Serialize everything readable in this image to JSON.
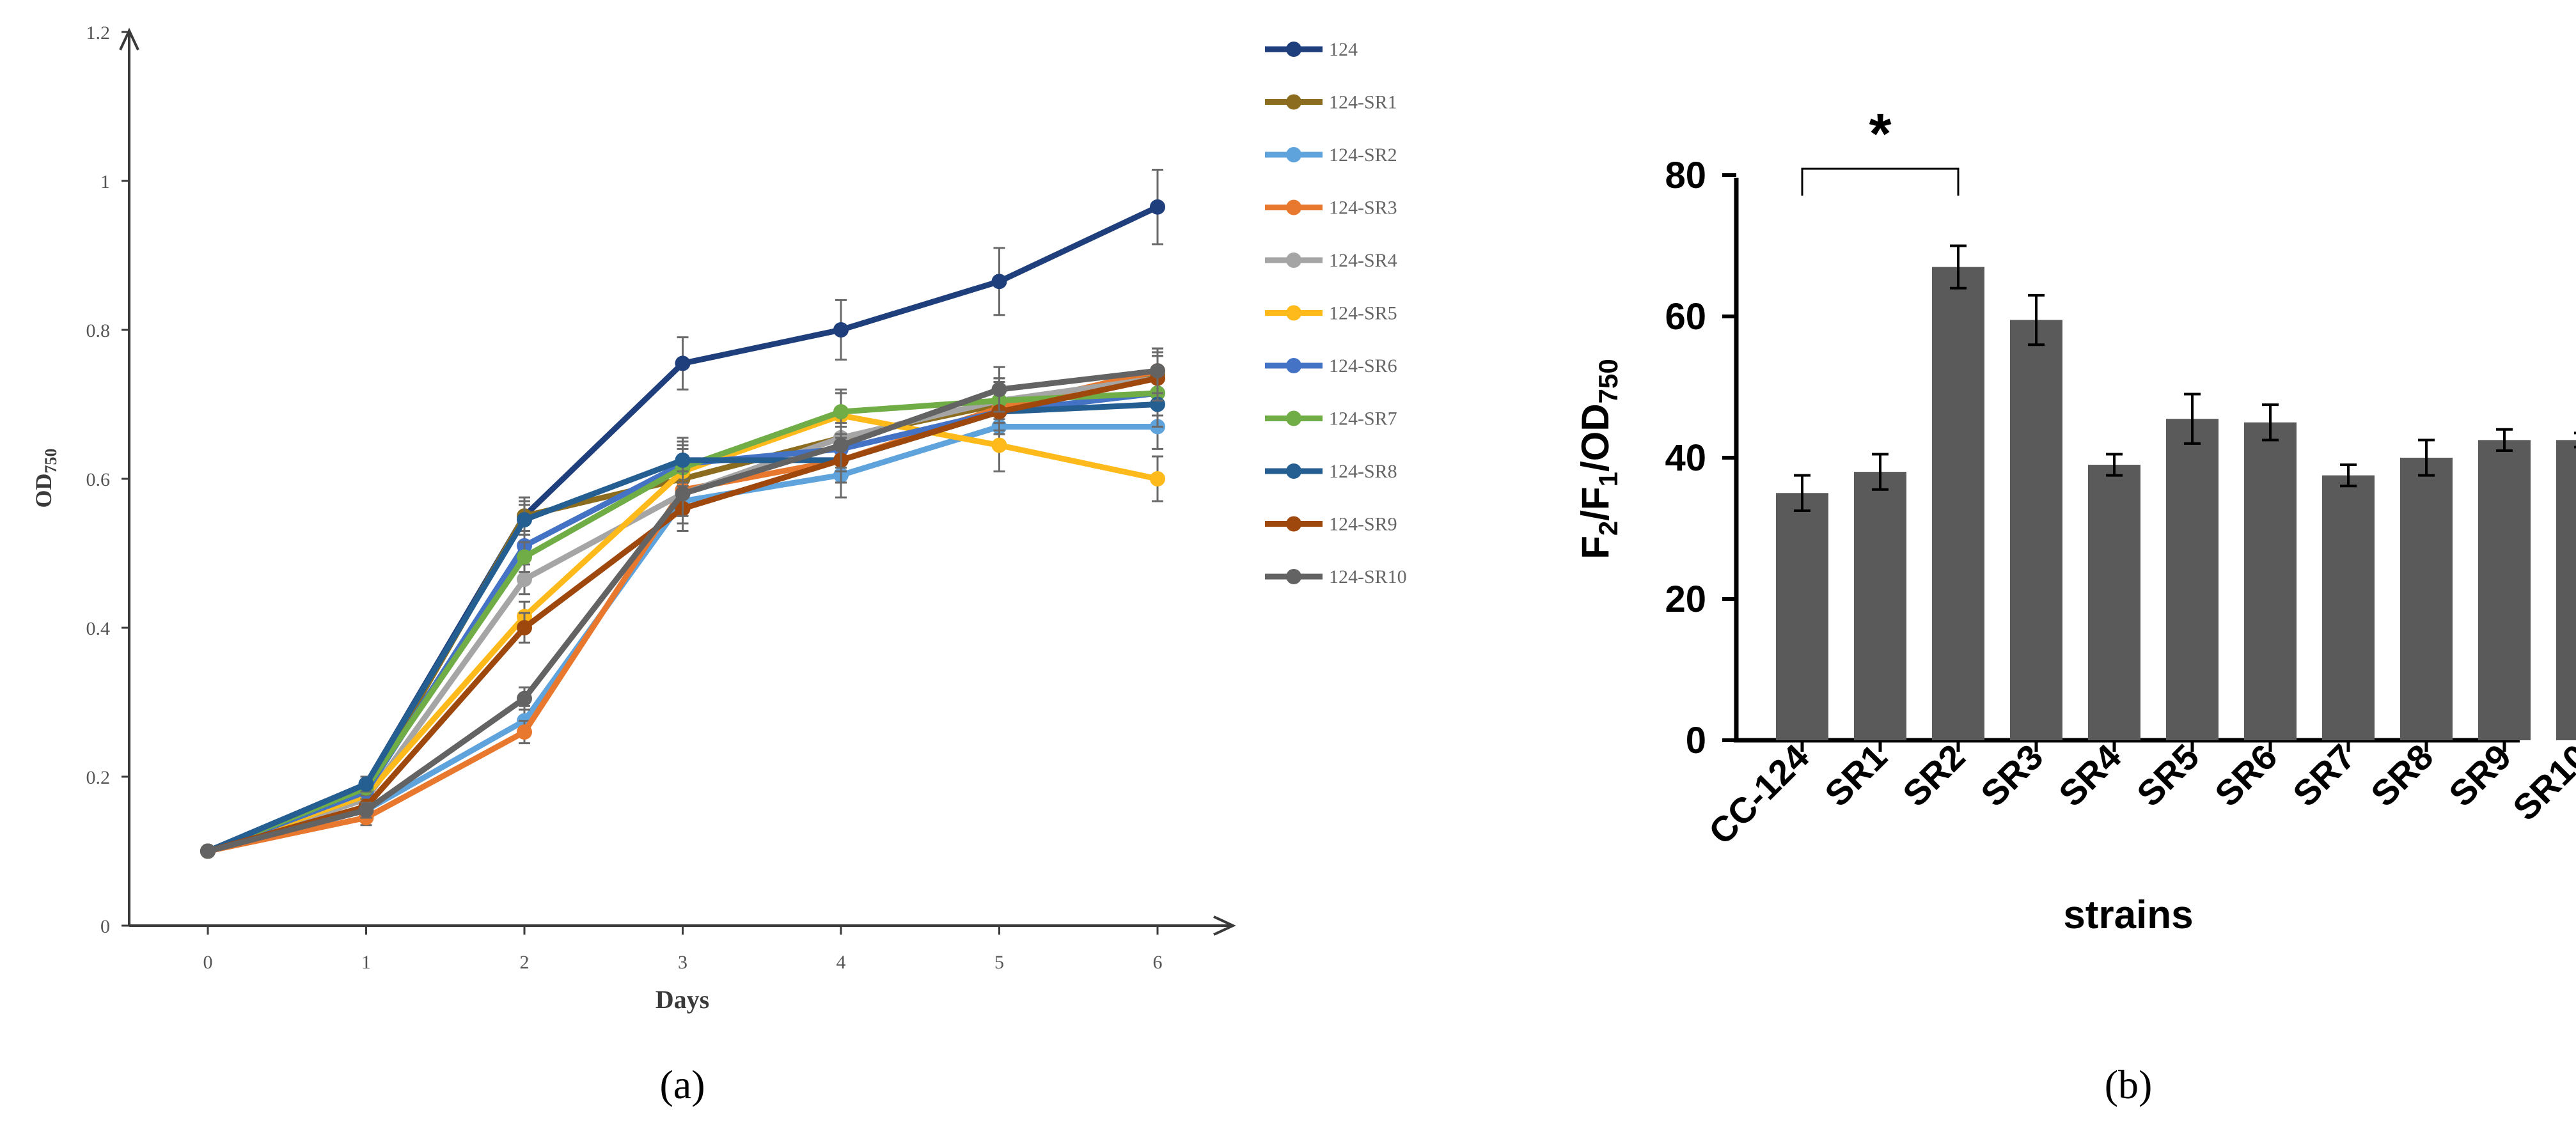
{
  "chart_data": [
    {
      "type": "line",
      "panel_label": "(a)",
      "title": "",
      "xlabel": "Days",
      "ylabel": "OD",
      "ylabel_sub": "750",
      "x": [
        0,
        1,
        2,
        3,
        4,
        5,
        6
      ],
      "xticks": [
        "0",
        "1",
        "2",
        "3",
        "4",
        "5",
        "6"
      ],
      "yticks": [
        "0",
        "0.2",
        "0.4",
        "0.6",
        "0.8",
        "1",
        "1.2"
      ],
      "ylim": [
        0,
        1.2
      ],
      "legend_position": "right",
      "series": [
        {
          "name": "124",
          "color": "#1F3E7C",
          "values": [
            0.1,
            0.19,
            0.55,
            0.755,
            0.8,
            0.865,
            0.965
          ],
          "errors": [
            0,
            0.01,
            0.025,
            0.035,
            0.04,
            0.045,
            0.05
          ]
        },
        {
          "name": "124-SR1",
          "color": "#8C6D1F",
          "values": [
            0.1,
            0.18,
            0.55,
            0.6,
            0.655,
            0.7,
            0.74
          ],
          "errors": [
            0,
            0.01,
            0.02,
            0.03,
            0.03,
            0.03,
            0.03
          ]
        },
        {
          "name": "124-SR2",
          "color": "#5FA3DD",
          "values": [
            0.1,
            0.155,
            0.275,
            0.57,
            0.605,
            0.67,
            0.67
          ],
          "errors": [
            0,
            0.01,
            0.02,
            0.03,
            0.03,
            0.03,
            0.03
          ]
        },
        {
          "name": "124-SR3",
          "color": "#E8782E",
          "values": [
            0.1,
            0.145,
            0.26,
            0.585,
            0.625,
            0.695,
            0.745
          ],
          "errors": [
            0,
            0.01,
            0.015,
            0.03,
            0.03,
            0.03,
            0.03
          ]
        },
        {
          "name": "124-SR4",
          "color": "#A5A5A5",
          "values": [
            0.1,
            0.17,
            0.465,
            0.58,
            0.655,
            0.705,
            0.735
          ],
          "errors": [
            0,
            0.01,
            0.02,
            0.03,
            0.03,
            0.03,
            0.03
          ]
        },
        {
          "name": "124-SR5",
          "color": "#FDBA1A",
          "values": [
            0.1,
            0.175,
            0.415,
            0.61,
            0.685,
            0.645,
            0.6
          ],
          "errors": [
            0,
            0.01,
            0.02,
            0.03,
            0.03,
            0.035,
            0.03
          ]
        },
        {
          "name": "124-SR6",
          "color": "#4472C4",
          "values": [
            0.1,
            0.18,
            0.51,
            0.62,
            0.64,
            0.69,
            0.715
          ],
          "errors": [
            0,
            0.01,
            0.02,
            0.03,
            0.03,
            0.03,
            0.03
          ]
        },
        {
          "name": "124-SR7",
          "color": "#70AD47",
          "values": [
            0.1,
            0.185,
            0.495,
            0.615,
            0.69,
            0.705,
            0.715
          ],
          "errors": [
            0,
            0.01,
            0.02,
            0.03,
            0.03,
            0.03,
            0.03
          ]
        },
        {
          "name": "124-SR8",
          "color": "#255E91",
          "values": [
            0.1,
            0.19,
            0.545,
            0.625,
            0.625,
            0.69,
            0.7
          ],
          "errors": [
            0,
            0.01,
            0.02,
            0.03,
            0.03,
            0.03,
            0.03
          ]
        },
        {
          "name": "124-SR9",
          "color": "#9E480E",
          "values": [
            0.1,
            0.16,
            0.4,
            0.56,
            0.625,
            0.69,
            0.735
          ],
          "errors": [
            0,
            0.01,
            0.02,
            0.03,
            0.03,
            0.03,
            0.03
          ]
        },
        {
          "name": "124-SR10",
          "color": "#636363",
          "values": [
            0.1,
            0.155,
            0.305,
            0.58,
            0.645,
            0.72,
            0.745
          ],
          "errors": [
            0,
            0.01,
            0.015,
            0.03,
            0.03,
            0.03,
            0.03
          ]
        }
      ]
    },
    {
      "type": "bar",
      "panel_label": "(b)",
      "title": "",
      "xlabel": "strains",
      "ylabel": {
        "F": "F",
        "sub2": "2",
        "slash1": "/F",
        "sub1": "1",
        "slash2": "/OD",
        "sub3": "750"
      },
      "categories": [
        "CC-124",
        "SR1",
        "SR2",
        "SR3",
        "SR4",
        "SR5",
        "SR6",
        "SR7",
        "SR8",
        "SR9",
        "SR10"
      ],
      "values": [
        35,
        38,
        67,
        59.5,
        39,
        45.5,
        45,
        37.5,
        40,
        42.5,
        42.5
      ],
      "errors": [
        2.5,
        2.5,
        3,
        3.5,
        1.5,
        3.5,
        2.5,
        1.5,
        2.5,
        1.5,
        1
      ],
      "yticks": [
        "0",
        "20",
        "40",
        "60",
        "80"
      ],
      "ylim": [
        0,
        80
      ],
      "bar_color": "#5A5A5A",
      "significance": {
        "from": "CC-124",
        "to": "SR2",
        "label": "*"
      }
    }
  ]
}
